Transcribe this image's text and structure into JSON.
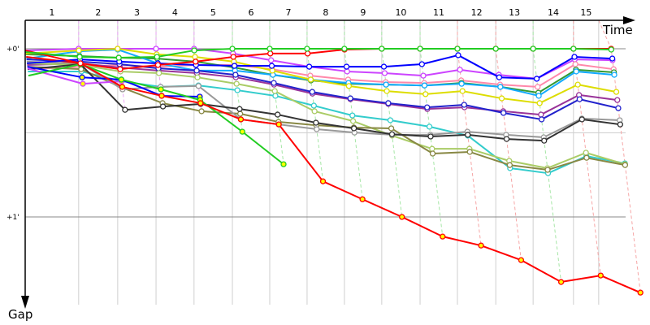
{
  "chart_data": {
    "type": "line",
    "title": "",
    "xlabel": "Time",
    "ylabel": "Gap",
    "x_unit": "seconds",
    "y_unit": "seconds",
    "xlim": [
      0,
      1813
    ],
    "ylim": [
      -10.1,
      91.3
    ],
    "y_ticks": [
      {
        "value": 0,
        "label": "+0'"
      },
      {
        "value": 30,
        "label": ""
      },
      {
        "value": 60,
        "label": "+1'"
      }
    ],
    "lap_labels": [
      "1",
      "2",
      "3",
      "4",
      "5",
      "6",
      "7",
      "8",
      "9",
      "10",
      "11",
      "12",
      "13",
      "14",
      "15"
    ],
    "grid_times": [
      159,
      275,
      389,
      502,
      616,
      727,
      838,
      949,
      1060,
      1174,
      1285,
      1399,
      1510,
      1630,
      1705
    ],
    "lap_times": [
      0,
      159,
      275,
      389,
      502,
      616,
      727,
      838,
      949,
      1060,
      1174,
      1285,
      1399,
      1510,
      1630,
      1742
    ],
    "lap_line_colors": [
      "",
      "#eaa6f6",
      "#eaa6f6",
      "#eaa6f6",
      "#eaa6f6",
      "#a6e6a6",
      "#a6e6a6",
      "#a6e6a6",
      "#a6e6a6",
      "#a6e6a6",
      "#a6e6a6",
      "#f6a6a6",
      "#f6a6a6",
      "#a6e6a6",
      "#f6a6a6",
      "#f6a6a6"
    ],
    "series": [
      {
        "name": "violet",
        "color": "#cc44ff",
        "marker_fill": "#ffffff",
        "gaps": [
          0.6,
          0,
          0,
          0,
          0,
          1.7,
          4.1,
          6.4,
          8.1,
          8.7,
          9.6,
          7.5,
          9.3,
          10.7,
          3.8,
          4.1
        ]
      },
      {
        "name": "pink",
        "color": "#ff88aa",
        "marker_fill": "#ffffff",
        "gaps": [
          7.3,
          6.4,
          5.8,
          6.4,
          5.8,
          5.8,
          7.3,
          9.6,
          11.0,
          11.9,
          12.2,
          11.3,
          12.8,
          13.6,
          5.5,
          7.3
        ]
      },
      {
        "name": "dark-green",
        "color": "#339933",
        "marker_fill": "#ffffff",
        "gaps": [
          2.0,
          2.6,
          3.2,
          3.5,
          4.6,
          6.7,
          9.3,
          11.3,
          12.5,
          12.8,
          13.1,
          12.2,
          13.6,
          15.7,
          7.5,
          8.4
        ]
      },
      {
        "name": "sky-blue",
        "color": "#11aaff",
        "marker_fill": "#ffffff",
        "gaps": [
          3.5,
          0.9,
          0.3,
          5.2,
          7.8,
          7.8,
          9.3,
          11.0,
          12.2,
          12.8,
          13.1,
          12.5,
          13.6,
          16.8,
          8.1,
          9.3
        ]
      },
      {
        "name": "yellow",
        "color": "#dddd00",
        "marker_fill": "#ffffff",
        "gaps": [
          1.7,
          0.6,
          0,
          2.0,
          2.9,
          4.6,
          7.8,
          11.0,
          13.3,
          15.1,
          16.2,
          15.1,
          17.7,
          19.4,
          12.8,
          15.4
        ]
      },
      {
        "name": "purple",
        "color": "#993399",
        "marker_fill": "#ffffff",
        "gaps": [
          5.8,
          5.2,
          6.7,
          7.8,
          8.7,
          10.2,
          12.8,
          16.0,
          18.0,
          19.7,
          21.5,
          20.9,
          22.3,
          23.5,
          16.5,
          18.3
        ]
      },
      {
        "name": "navy",
        "color": "#2222cc",
        "marker_fill": "#ffffff",
        "gaps": [
          3.8,
          4.6,
          5.5,
          7.0,
          7.8,
          9.3,
          12.2,
          15.4,
          17.7,
          19.4,
          20.9,
          20.0,
          22.9,
          25.2,
          18.0,
          21.2
        ]
      },
      {
        "name": "cyan",
        "color": "#33cccc",
        "marker_fill": "#ffffff",
        "gaps": [
          8.1,
          8.1,
          11.6,
          13.6,
          13.1,
          14.8,
          16.8,
          20.3,
          23.8,
          25.5,
          27.8,
          31.0,
          42.6,
          44.4,
          38.3,
          40.9
        ]
      },
      {
        "name": "light-olive",
        "color": "#aacc66",
        "marker_fill": "#ffffff",
        "gaps": [
          5.2,
          5.8,
          8.1,
          8.7,
          10.2,
          12.5,
          15.1,
          22.3,
          25.8,
          31.0,
          35.7,
          35.7,
          40.0,
          42.6,
          37.1,
          41.2
        ]
      },
      {
        "name": "olive",
        "color": "#888844",
        "marker_fill": "#ffffff",
        "gaps": [
          6.4,
          7.3,
          13.9,
          19.4,
          22.3,
          23.2,
          26.1,
          27.3,
          28.1,
          28.4,
          37.4,
          36.8,
          41.5,
          43.2,
          38.9,
          41.5
        ]
      },
      {
        "name": "gray",
        "color": "#999999",
        "marker_fill": "#ffffff",
        "gaps": [
          4.6,
          5.2,
          14.5,
          13.6,
          13.3,
          25.2,
          27.0,
          28.7,
          29.9,
          30.7,
          30.7,
          29.6,
          30.7,
          31.6,
          24.9,
          25.5
        ]
      },
      {
        "name": "dark-gray",
        "color": "#333333",
        "marker_fill": "#ffffff",
        "gaps": [
          7.3,
          5.5,
          21.8,
          20.6,
          19.7,
          21.5,
          23.5,
          26.4,
          28.4,
          30.5,
          31.3,
          30.7,
          32.2,
          32.8,
          25.2,
          27.0
        ]
      },
      {
        "name": "magenta-yellow",
        "color": "#cc44ff",
        "marker_fill": "#ffff00",
        "gaps": [
          7.0,
          12.5,
          11.6
        ]
      },
      {
        "name": "blue-yellow",
        "color": "#0000ff",
        "marker_fill": "#ffff00",
        "gaps": [
          6.4,
          10.2,
          11.0,
          16.8,
          17.1
        ]
      },
      {
        "name": "green-yellow",
        "color": "#22cc22",
        "marker_fill": "#ffff00",
        "gaps": [
          9.6,
          5.5,
          11.0,
          14.5,
          18.3,
          29.6,
          41.2
        ]
      },
      {
        "name": "red-yellow",
        "color": "#ff0000",
        "marker_fill": "#ffff00",
        "gaps": [
          2.9,
          5.2,
          13.6,
          16.8,
          19.4,
          25.2,
          27.0,
          47.3,
          53.7,
          60.0,
          67.0,
          70.2,
          75.4,
          83.2,
          80.9,
          87.0
        ]
      },
      {
        "name": "blue",
        "color": "#0000ff",
        "marker_fill": "#ffffff",
        "gaps": [
          5.2,
          3.8,
          4.6,
          5.2,
          5.8,
          6.1,
          6.1,
          6.4,
          6.4,
          6.4,
          5.5,
          2.3,
          10.2,
          10.7,
          2.9,
          3.5
        ]
      },
      {
        "name": "red",
        "color": "#ff0000",
        "marker_fill": "#ffffff",
        "gaps": [
          0.6,
          5.2,
          7.3,
          5.8,
          4.6,
          2.9,
          1.7,
          1.7,
          0.3,
          0,
          0,
          0,
          0,
          0,
          0,
          0
        ]
      },
      {
        "name": "green",
        "color": "#22cc22",
        "marker_fill": "#ffffff",
        "gaps": [
          1.2,
          2.9,
          3.2,
          2.9,
          0.6,
          0,
          0,
          0,
          0,
          0,
          0,
          0,
          0,
          0,
          0,
          0.3
        ]
      }
    ]
  }
}
